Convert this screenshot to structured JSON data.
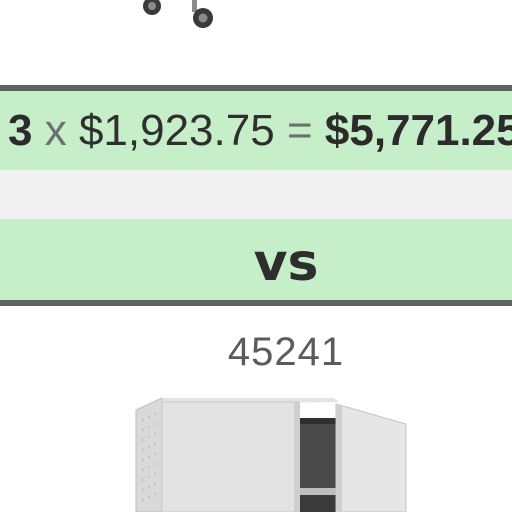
{
  "previous_item": {
    "quantity": "3",
    "times_sign": "x",
    "unit_price": "$1,923.75",
    "equals_sign": "=",
    "total": "$5,771.25"
  },
  "comparison": {
    "label": "vs"
  },
  "next_item": {
    "product_number": "45241"
  },
  "colors": {
    "band_green": "#c6efc9",
    "divider_gray": "#606263",
    "gap_gray": "#f1f1f1"
  }
}
